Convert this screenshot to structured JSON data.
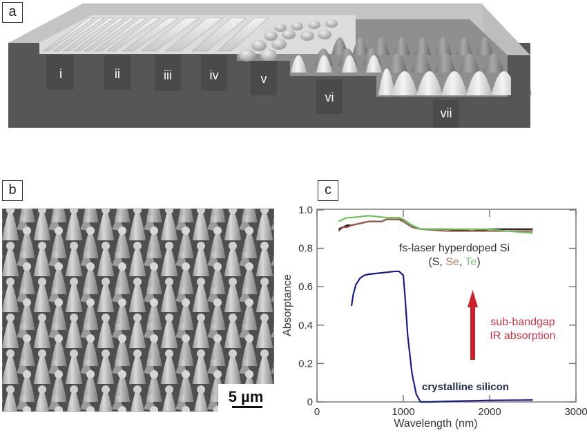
{
  "figure": {
    "panels": {
      "a": {
        "label": "a",
        "description": "3D schematic of laser-textured silicon surface morphologies",
        "regions": [
          "i",
          "ii",
          "iii",
          "iv",
          "v",
          "vi",
          "vii"
        ]
      },
      "b": {
        "label": "b",
        "description": "SEM image of silicon micro-spikes",
        "scale_bar": "5 µm"
      },
      "c": {
        "label": "c"
      }
    }
  },
  "chart_data": {
    "type": "line",
    "title": "",
    "xlabel": "Wavelength (nm)",
    "ylabel": "Absorptance",
    "xlim": [
      0,
      3000
    ],
    "ylim": [
      0,
      1.0
    ],
    "xticks": [
      "0",
      "1000",
      "2000",
      "3000"
    ],
    "yticks": [
      "0",
      "0.2",
      "0.4",
      "0.6",
      "0.8",
      "1.0"
    ],
    "grid": false,
    "annotations": [
      {
        "text": "fs-laser hyperdoped Si",
        "x": 1950,
        "y": 0.8
      },
      {
        "text": "(S, Se, Te)",
        "x": 1950,
        "y": 0.73,
        "parts": [
          {
            "t": "(S, ",
            "color": "#333333"
          },
          {
            "t": "Se",
            "color": "#b07a64"
          },
          {
            "t": ", ",
            "color": "#333333"
          },
          {
            "t": "Te",
            "color": "#7fbf6f"
          },
          {
            "t": ")",
            "color": "#333333"
          }
        ]
      },
      {
        "text": "sub-bandgap",
        "x": 2300,
        "y": 0.42,
        "color": "#cc3344"
      },
      {
        "text": "IR absorption",
        "x": 2300,
        "y": 0.35,
        "color": "#cc3344"
      },
      {
        "text": "crystalline silicon",
        "x": 1750,
        "y": 0.07,
        "color": "#1f2d4d"
      }
    ],
    "arrow": {
      "x": 1830,
      "y_from": 0.2,
      "y_to": 0.6,
      "color": "#cc1f2a"
    },
    "series": [
      {
        "name": "S (black)",
        "color": "#111111",
        "x": [
          250,
          300,
          350,
          400,
          600,
          750,
          800,
          950,
          1000,
          1100,
          1200,
          1500,
          1800,
          2000,
          2200,
          2500
        ],
        "y": [
          0.9,
          0.91,
          0.92,
          0.92,
          0.94,
          0.94,
          0.95,
          0.95,
          0.95,
          0.92,
          0.9,
          0.9,
          0.89,
          0.9,
          0.9,
          0.9
        ]
      },
      {
        "name": "Se (brown)",
        "color": "#9a5a4a",
        "x": [
          250,
          300,
          350,
          400,
          600,
          750,
          800,
          950,
          1000,
          1100,
          1200,
          1500,
          1800,
          2000,
          2200,
          2500
        ],
        "y": [
          0.89,
          0.91,
          0.91,
          0.92,
          0.94,
          0.94,
          0.95,
          0.95,
          0.94,
          0.91,
          0.9,
          0.89,
          0.89,
          0.89,
          0.89,
          0.89
        ]
      },
      {
        "name": "Te (green)",
        "color": "#6fbf5f",
        "x": [
          250,
          300,
          350,
          400,
          600,
          800,
          950,
          1000,
          1100,
          1200,
          1500,
          1800,
          2000,
          2200,
          2500
        ],
        "y": [
          0.94,
          0.95,
          0.96,
          0.96,
          0.97,
          0.96,
          0.96,
          0.95,
          0.92,
          0.9,
          0.9,
          0.9,
          0.9,
          0.89,
          0.88
        ]
      },
      {
        "name": "crystalline silicon",
        "color": "#1a1a8a",
        "x": [
          400,
          420,
          450,
          500,
          550,
          600,
          700,
          800,
          900,
          950,
          1000,
          1020,
          1050,
          1100,
          1150,
          1200,
          1300,
          1500,
          2000,
          2500
        ],
        "y": [
          0.5,
          0.56,
          0.61,
          0.645,
          0.66,
          0.665,
          0.67,
          0.675,
          0.68,
          0.68,
          0.66,
          0.55,
          0.35,
          0.15,
          0.04,
          0.0,
          0.0,
          0.003,
          0.008,
          0.01
        ]
      }
    ]
  }
}
